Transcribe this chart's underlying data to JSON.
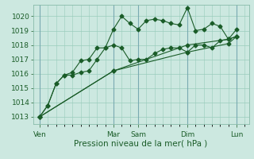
{
  "title": "",
  "xlabel": "Pression niveau de la mer( hPa )",
  "background_color": "#cce8e0",
  "grid_color": "#99ccbb",
  "line_color": "#1a5c28",
  "ylim": [
    1012.5,
    1020.8
  ],
  "yticks": [
    1013,
    1014,
    1015,
    1016,
    1017,
    1018,
    1019,
    1020
  ],
  "day_labels": [
    "Ven",
    "Mar",
    "Sam",
    "Dim",
    "Lun"
  ],
  "day_positions": [
    0,
    9,
    12,
    18,
    24
  ],
  "xlim": [
    -0.8,
    25.5
  ],
  "line1_x": [
    0,
    1,
    2,
    3,
    4,
    5,
    6,
    7,
    8,
    9,
    10,
    11,
    12,
    13,
    14,
    15,
    16,
    17,
    18,
    19,
    20,
    21,
    22,
    23,
    24
  ],
  "line1_y": [
    1013.0,
    1013.8,
    1015.3,
    1015.9,
    1015.9,
    1016.1,
    1016.2,
    1017.0,
    1017.8,
    1019.1,
    1020.0,
    1019.5,
    1019.1,
    1019.7,
    1019.8,
    1019.7,
    1019.5,
    1019.4,
    1020.6,
    1019.0,
    1019.1,
    1019.5,
    1019.3,
    1018.4,
    1019.1
  ],
  "line2_x": [
    0,
    1,
    2,
    3,
    4,
    5,
    6,
    7,
    8,
    9,
    10,
    11,
    12,
    13,
    14,
    15,
    16,
    17,
    18,
    19,
    20,
    21,
    22,
    23,
    24
  ],
  "line2_y": [
    1013.0,
    1013.8,
    1015.3,
    1015.9,
    1016.1,
    1016.9,
    1017.0,
    1017.8,
    1017.8,
    1018.0,
    1017.8,
    1016.9,
    1017.0,
    1017.0,
    1017.4,
    1017.7,
    1017.8,
    1017.8,
    1017.5,
    1018.0,
    1018.0,
    1017.8,
    1018.3,
    1018.4,
    1018.6
  ],
  "line3_x": [
    0,
    9,
    18,
    23,
    24
  ],
  "line3_y": [
    1013.0,
    1016.2,
    1018.0,
    1018.4,
    1018.6
  ],
  "line4_x": [
    0,
    9,
    18,
    23,
    24
  ],
  "line4_y": [
    1013.0,
    1016.2,
    1017.5,
    1018.1,
    1018.6
  ],
  "ylabel_fontsize": 6,
  "xlabel_fontsize": 7.5,
  "tick_labelsize": 6.5,
  "marker_size": 2.5,
  "linewidth": 0.8
}
